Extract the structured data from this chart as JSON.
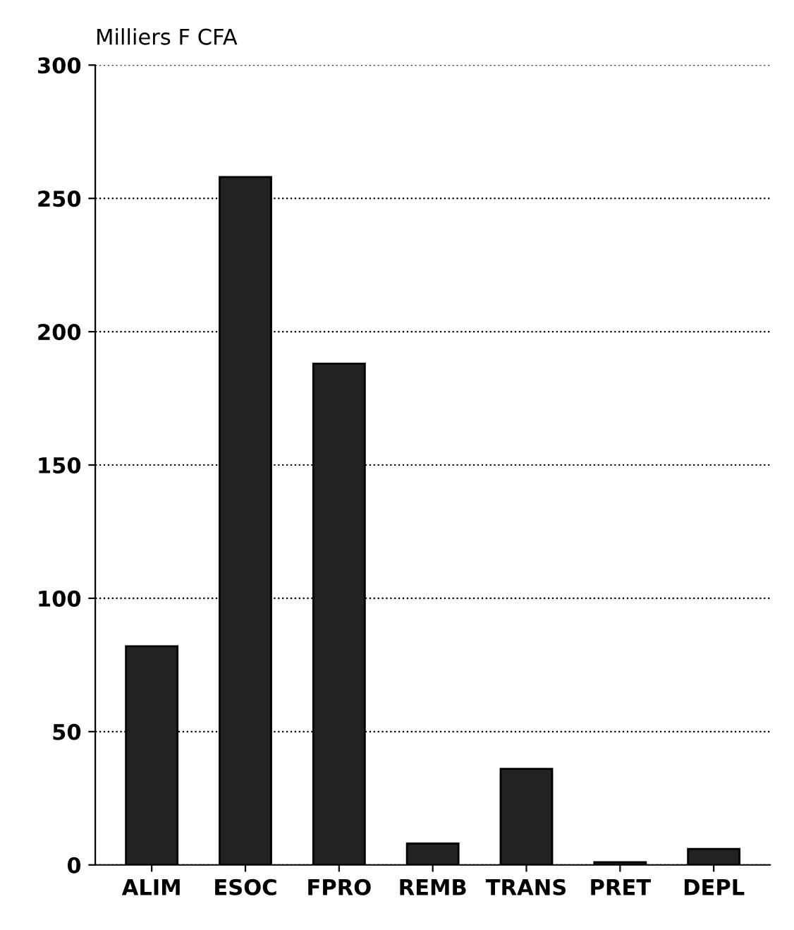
{
  "chart_data": {
    "type": "bar",
    "ylabel": "Milliers F CFA",
    "categories": [
      "ALIM",
      "ESOC",
      "FPRO",
      "REMB",
      "TRANS",
      "PRET",
      "DEPL"
    ],
    "values": [
      82,
      258,
      188,
      8,
      36,
      1,
      6
    ],
    "color": "#222222",
    "ylim": [
      0,
      300
    ],
    "yticks": [
      0,
      50,
      100,
      150,
      200,
      250,
      300
    ],
    "grid": "y"
  }
}
